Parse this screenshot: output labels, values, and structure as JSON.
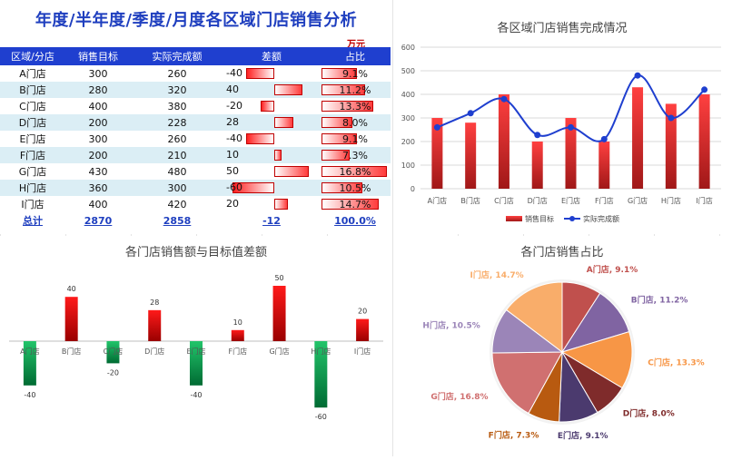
{
  "title": "年度/半年度/季度/月度各区域门店销售分析",
  "unit": "万元",
  "table": {
    "headers": [
      "区域/分店",
      "销售目标",
      "实际完成额",
      "差额",
      "占比"
    ],
    "rows": [
      {
        "store": "A门店",
        "target": "300",
        "actual": "260",
        "diff": "-40",
        "pct": "9.1%"
      },
      {
        "store": "B门店",
        "target": "280",
        "actual": "320",
        "diff": "40",
        "pct": "11.2%"
      },
      {
        "store": "C门店",
        "target": "400",
        "actual": "380",
        "diff": "-20",
        "pct": "13.3%"
      },
      {
        "store": "D门店",
        "target": "200",
        "actual": "228",
        "diff": "28",
        "pct": "8.0%"
      },
      {
        "store": "E门店",
        "target": "300",
        "actual": "260",
        "diff": "-40",
        "pct": "9.1%"
      },
      {
        "store": "F门店",
        "target": "200",
        "actual": "210",
        "diff": "10",
        "pct": "7.3%"
      },
      {
        "store": "G门店",
        "target": "430",
        "actual": "480",
        "diff": "50",
        "pct": "16.8%"
      },
      {
        "store": "H门店",
        "target": "360",
        "actual": "300",
        "diff": "-60",
        "pct": "10.5%"
      },
      {
        "store": "I门店",
        "target": "400",
        "actual": "420",
        "diff": "20",
        "pct": "14.7%"
      }
    ],
    "total": {
      "store": "总计",
      "target": "2870",
      "actual": "2858",
      "diff": "-12",
      "pct": "100.0%"
    }
  },
  "chart_data": [
    {
      "type": "bar",
      "title": "各区域门店销售完成情况",
      "categories": [
        "A门店",
        "B门店",
        "C门店",
        "D门店",
        "E门店",
        "F门店",
        "G门店",
        "H门店",
        "I门店"
      ],
      "series": [
        {
          "name": "销售目标",
          "kind": "bar",
          "values": [
            300,
            280,
            400,
            200,
            300,
            200,
            430,
            360,
            400
          ]
        },
        {
          "name": "实际完成额",
          "kind": "line",
          "values": [
            260,
            320,
            380,
            228,
            260,
            210,
            480,
            300,
            420
          ]
        }
      ],
      "ylim": [
        0,
        600
      ],
      "yticks": [
        0,
        100,
        200,
        300,
        400,
        500,
        600
      ],
      "legend": "bottom",
      "colors": {
        "bar_top": "#ff4040",
        "bar_bottom": "#a01818",
        "line": "#1f3fcf"
      }
    },
    {
      "type": "bar",
      "title": "各门店销售额与目标值差额",
      "categories": [
        "A门店",
        "B门店",
        "C门店",
        "D门店",
        "E门店",
        "F门店",
        "G门店",
        "H门店",
        "I门店"
      ],
      "values": [
        -40,
        40,
        -20,
        28,
        -40,
        10,
        50,
        -60,
        20
      ],
      "colors": {
        "positive": "#e00000",
        "negative": "#00a050"
      }
    },
    {
      "type": "pie",
      "title": "各门店销售占比",
      "labels": [
        "A门店",
        "B门店",
        "C门店",
        "D门店",
        "E门店",
        "F门店",
        "G门店",
        "H门店",
        "I门店"
      ],
      "values": [
        9.1,
        11.2,
        13.3,
        8.0,
        9.1,
        7.3,
        16.8,
        10.5,
        14.7
      ],
      "label_texts": [
        "A门店, 9.1%",
        "B门店, 11.2%",
        "C门店, 13.3%",
        "D门店, 8.0%",
        "E门店, 9.1%",
        "F门店, 7.3%",
        "G门店, 16.8%",
        "H门店, 10.5%",
        "I门店, 14.7%"
      ],
      "colors": [
        "#c0504d",
        "#8064a2",
        "#f79646",
        "#7f2b2b",
        "#4b3a6e",
        "#b85a10",
        "#d07070",
        "#9b85b8",
        "#f9ad6a"
      ],
      "label_colors": [
        "#c0504d",
        "#8064a2",
        "#f79646",
        "#7f2b2b",
        "#4b3a6e",
        "#b85a10",
        "#d07070",
        "#9b85b8",
        "#f9ad6a"
      ]
    }
  ]
}
